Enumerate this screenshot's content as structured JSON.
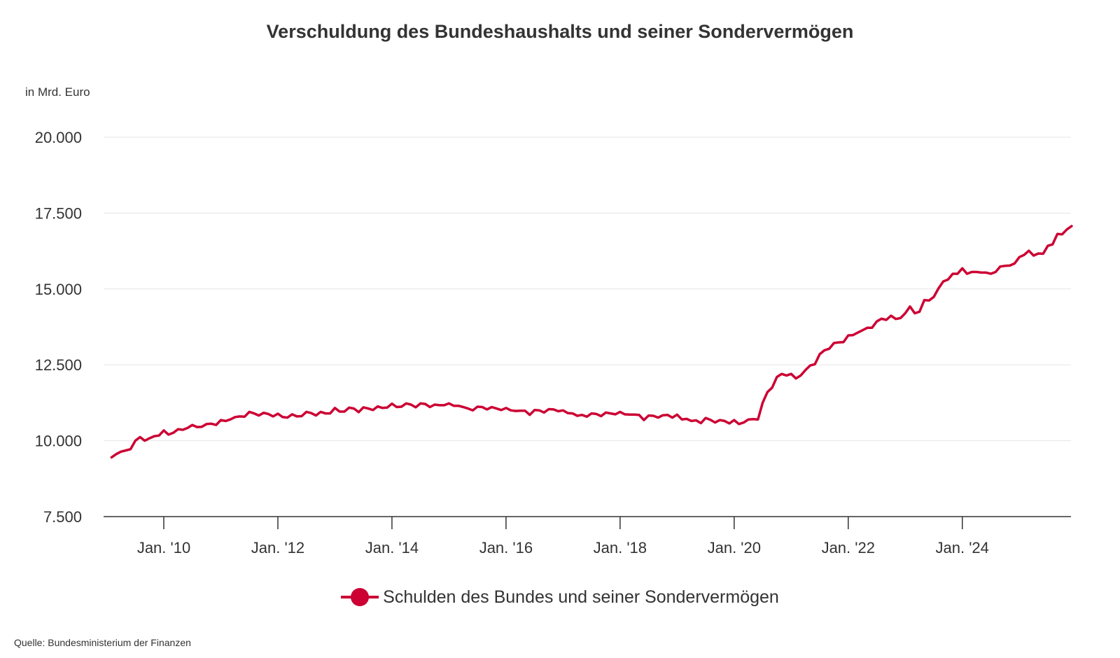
{
  "chart_data": {
    "type": "line",
    "title": "Verschuldung des Bundeshaushalts und seiner Sondervermögen",
    "ylabel": "in Mrd. Euro",
    "xlabel": "",
    "ylim": [
      7500,
      20000
    ],
    "yticks": [
      7500,
      10000,
      12500,
      15000,
      17500,
      20000
    ],
    "ytick_labels": [
      "7.500",
      "10.000",
      "12.500",
      "15.000",
      "17.500",
      "20.000"
    ],
    "grid": true,
    "x_start": "2009-02",
    "x_end": "2025-11",
    "xticks": [
      "2010-01",
      "2012-01",
      "2014-01",
      "2016-01",
      "2018-01",
      "2020-01",
      "2022-01",
      "2024-01"
    ],
    "xtick_labels": [
      "Jan. '10",
      "Jan. '12",
      "Jan. '14",
      "Jan. '16",
      "Jan. '18",
      "Jan. '20",
      "Jan. '22",
      "Jan. '24"
    ],
    "legend_position": "bottom",
    "series": [
      {
        "name": "Schulden des Bundes und seiner Sondervermögen",
        "color": "#cc0033",
        "values": [
          9450,
          9560,
          9640,
          9680,
          9720,
          10000,
          10120,
          10000,
          10080,
          10150,
          10170,
          10340,
          10200,
          10260,
          10380,
          10360,
          10420,
          10520,
          10450,
          10460,
          10550,
          10560,
          10520,
          10680,
          10650,
          10700,
          10780,
          10800,
          10790,
          10950,
          10900,
          10830,
          10920,
          10880,
          10800,
          10890,
          10780,
          10760,
          10870,
          10800,
          10810,
          10950,
          10910,
          10830,
          10950,
          10900,
          10900,
          11080,
          10960,
          10960,
          11090,
          11060,
          10940,
          11100,
          11060,
          11010,
          11130,
          11080,
          11090,
          11220,
          11110,
          11120,
          11230,
          11190,
          11100,
          11230,
          11210,
          11110,
          11190,
          11170,
          11170,
          11230,
          11150,
          11150,
          11110,
          11060,
          11000,
          11120,
          11110,
          11030,
          11110,
          11060,
          11010,
          11080,
          11000,
          10980,
          10990,
          10990,
          10850,
          11010,
          11000,
          10930,
          11040,
          11030,
          10970,
          11000,
          10910,
          10900,
          10820,
          10850,
          10790,
          10900,
          10880,
          10810,
          10930,
          10900,
          10870,
          10950,
          10870,
          10860,
          10860,
          10850,
          10680,
          10830,
          10820,
          10760,
          10840,
          10850,
          10760,
          10860,
          10700,
          10720,
          10650,
          10670,
          10580,
          10750,
          10690,
          10600,
          10680,
          10650,
          10570,
          10680,
          10550,
          10600,
          10700,
          10710,
          10700,
          11250,
          11600,
          11750,
          12100,
          12200,
          12150,
          12200,
          12050,
          12150,
          12330,
          12480,
          12520,
          12850,
          12980,
          13030,
          13220,
          13240,
          13250,
          13470,
          13480,
          13560,
          13640,
          13720,
          13720,
          13930,
          14020,
          13980,
          14120,
          14010,
          14040,
          14200,
          14420,
          14200,
          14250,
          14630,
          14620,
          14740,
          15020,
          15250,
          15310,
          15500,
          15500,
          15680,
          15500,
          15560,
          15560,
          15540,
          15540,
          15500,
          15560,
          15740,
          15760,
          15770,
          15840,
          16050,
          16120,
          16260,
          16100,
          16170,
          16160,
          16420,
          16470,
          16810,
          16800,
          16960,
          17070
        ]
      }
    ],
    "source": "Quelle: Bundesministerium der Finanzen"
  },
  "header": {
    "title": "Verschuldung des Bundeshaushalts und seiner Sondervermögen",
    "unit_label": "in Mrd. Euro"
  },
  "legend": {
    "label": "Schulden des Bundes und seiner Sondervermögen",
    "color": "#cc0033"
  },
  "footer": {
    "source": "Quelle: Bundesministerium der Finanzen"
  }
}
